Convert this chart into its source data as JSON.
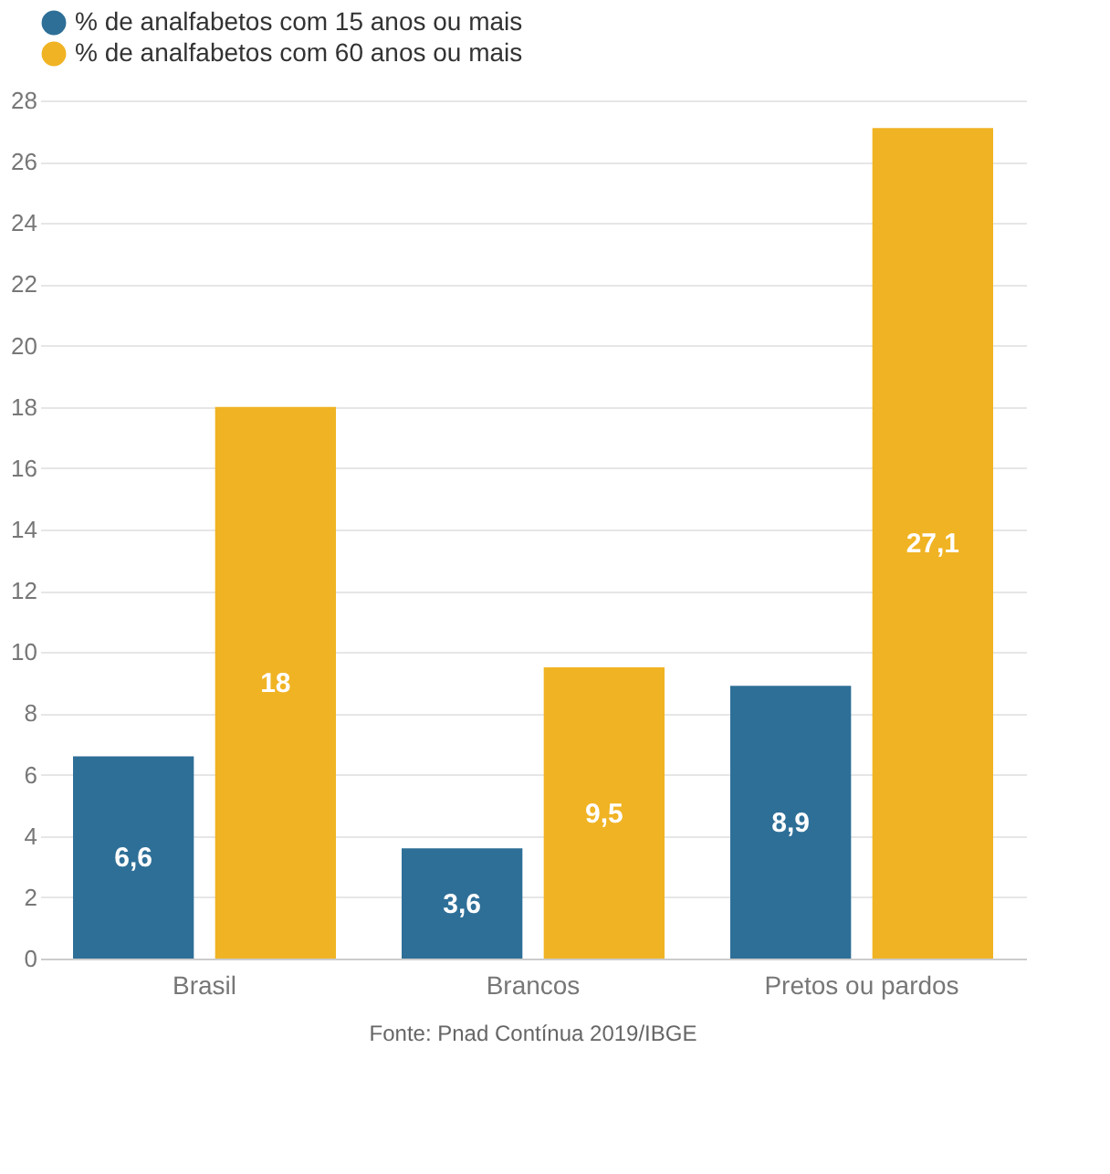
{
  "chart_data": {
    "type": "bar",
    "categories": [
      "Brasil",
      "Brancos",
      "Pretos ou pardos"
    ],
    "series": [
      {
        "name": "% de analfabetos com 15 anos ou mais",
        "color": "#2e6f97",
        "values": [
          6.6,
          3.6,
          8.9
        ],
        "value_labels": [
          "6,6",
          "3,6",
          "8,9"
        ]
      },
      {
        "name": "% de analfabetos com 60 anos ou mais",
        "color": "#f0b323",
        "values": [
          18,
          9.5,
          27.1
        ],
        "value_labels": [
          "18",
          "9,5",
          "27,1"
        ]
      }
    ],
    "ylim": [
      0,
      28
    ],
    "yticks": [
      0,
      2,
      4,
      6,
      8,
      10,
      12,
      14,
      16,
      18,
      20,
      22,
      24,
      26,
      28
    ],
    "grid": "y",
    "legend": "top left",
    "annotations": [
      "Fonte: Pnad Contínua 2019/IBGE"
    ]
  }
}
